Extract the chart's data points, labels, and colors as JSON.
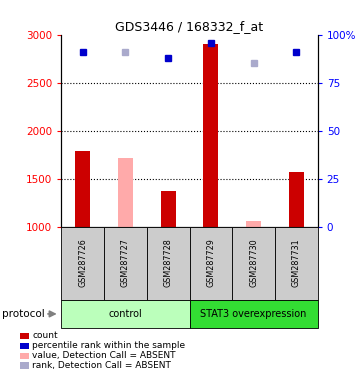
{
  "title": "GDS3446 / 168332_f_at",
  "samples": [
    "GSM287726",
    "GSM287727",
    "GSM287728",
    "GSM287729",
    "GSM287730",
    "GSM287731"
  ],
  "bar_values": [
    1790,
    1710,
    1370,
    2900,
    1060,
    1570
  ],
  "bar_colors": [
    "#cc0000",
    "#ffaaaa",
    "#cc0000",
    "#cc0000",
    "#ffaaaa",
    "#cc0000"
  ],
  "rank_values": [
    2820,
    2820,
    2760,
    2910,
    2700,
    2820
  ],
  "rank_colors": [
    "#0000cc",
    "#aaaacc",
    "#0000cc",
    "#0000cc",
    "#aaaacc",
    "#0000cc"
  ],
  "ylim_left": [
    1000,
    3000
  ],
  "ylim_right": [
    0,
    100
  ],
  "yticks_left": [
    1000,
    1500,
    2000,
    2500,
    3000
  ],
  "yticks_right": [
    0,
    25,
    50,
    75,
    100
  ],
  "protocol_groups": [
    {
      "label": "control",
      "start": 0,
      "end": 3,
      "color": "#bbffbb"
    },
    {
      "label": "STAT3 overexpression",
      "start": 3,
      "end": 6,
      "color": "#33dd33"
    }
  ],
  "legend_items": [
    {
      "label": "count",
      "color": "#cc0000"
    },
    {
      "label": "percentile rank within the sample",
      "color": "#0000cc"
    },
    {
      "label": "value, Detection Call = ABSENT",
      "color": "#ffaaaa"
    },
    {
      "label": "rank, Detection Call = ABSENT",
      "color": "#aaaacc"
    }
  ],
  "bar_bottom": 1000,
  "dotted_lines": [
    1500,
    2000,
    2500
  ],
  "bg_color": "#ffffff",
  "sample_box_color": "#cccccc",
  "protocol_label": "protocol"
}
